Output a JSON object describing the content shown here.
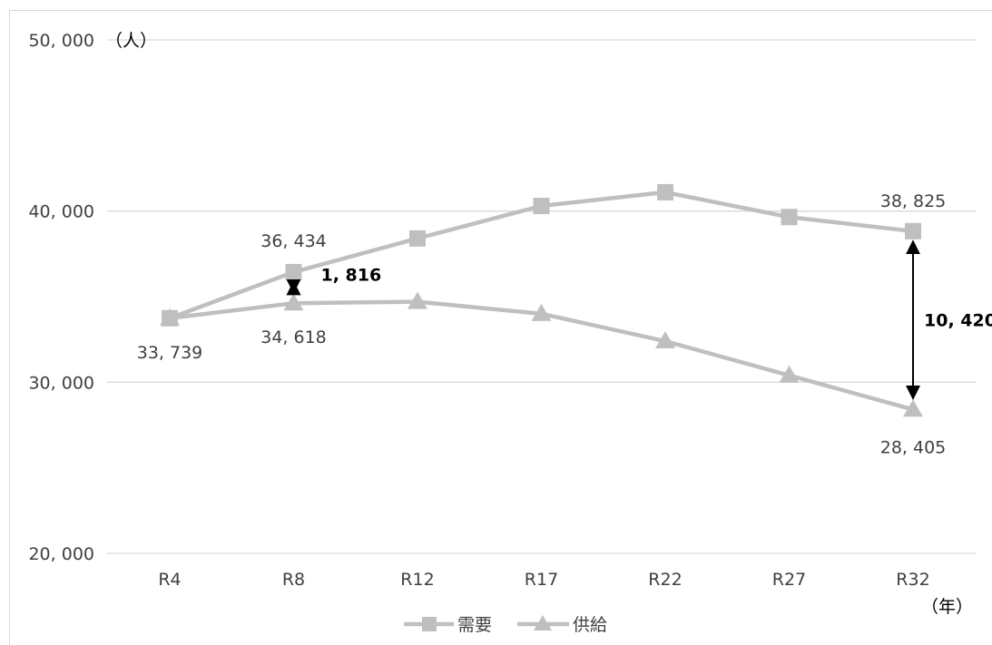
{
  "chart_data": {
    "type": "line",
    "title": "",
    "xlabel": "",
    "ylabel": "",
    "y_unit": "（人）",
    "x_unit": "（年）",
    "categories": [
      "R4",
      "R8",
      "R12",
      "R17",
      "R22",
      "R27",
      "R32"
    ],
    "ylim": [
      20000,
      50000
    ],
    "yticks": [
      20000,
      30000,
      40000,
      50000
    ],
    "ytick_labels": [
      "20, 000",
      "30, 000",
      "40, 000",
      "50, 000"
    ],
    "grid": true,
    "legend_position": "bottom",
    "series": [
      {
        "name": "需要",
        "marker": "square",
        "color": "#bfbfbf",
        "values": [
          33739,
          36434,
          38400,
          40300,
          41100,
          39650,
          38825
        ]
      },
      {
        "name": "供給",
        "marker": "triangle",
        "color": "#bfbfbf",
        "values": [
          33739,
          34618,
          34700,
          34000,
          32400,
          30400,
          28405
        ]
      }
    ],
    "data_labels": [
      {
        "series": 0,
        "index": 1,
        "text": "36, 434"
      },
      {
        "series": 0,
        "index": 6,
        "text": "38, 825"
      },
      {
        "series": 1,
        "index": 0,
        "text": "33, 739"
      },
      {
        "series": 1,
        "index": 1,
        "text": "34, 618"
      },
      {
        "series": 1,
        "index": 6,
        "text": "28, 405"
      }
    ],
    "annotations": [
      {
        "index": 1,
        "text": "1, 816"
      },
      {
        "index": 6,
        "text": "10, 420"
      }
    ]
  }
}
